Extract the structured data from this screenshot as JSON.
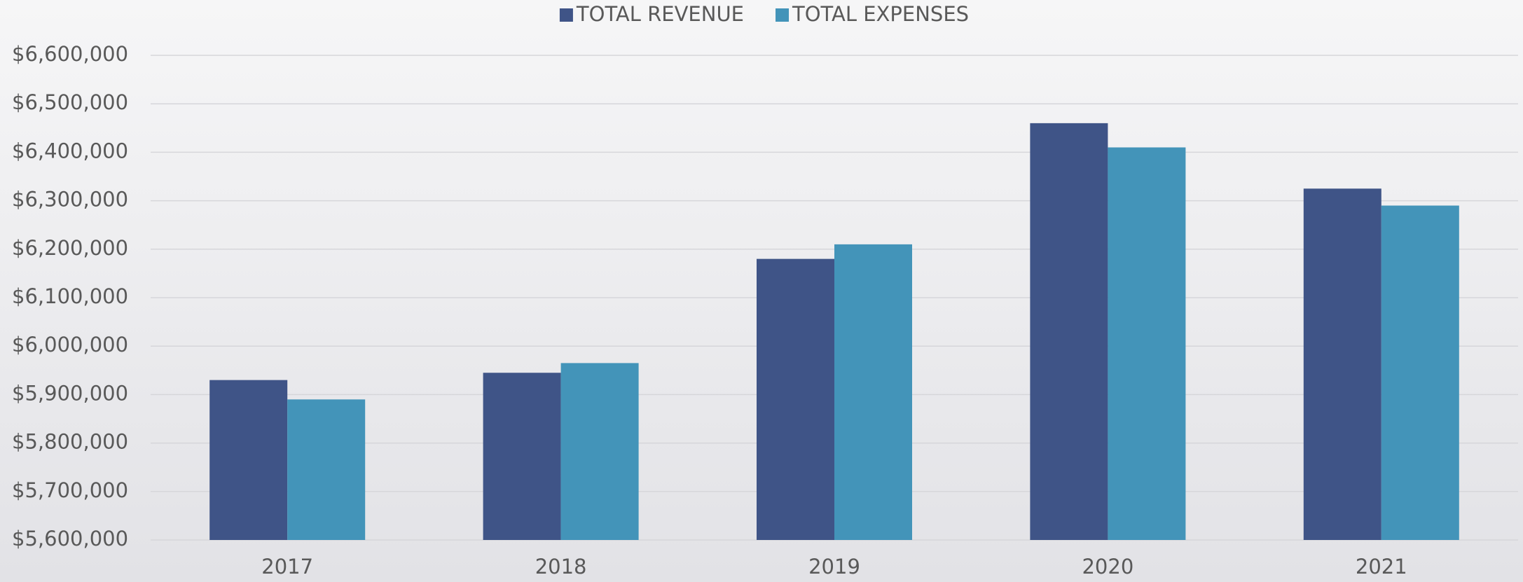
{
  "chart_data": {
    "type": "bar",
    "categories": [
      "2017",
      "2018",
      "2019",
      "2020",
      "2021"
    ],
    "series": [
      {
        "name": "TOTAL REVENUE",
        "color": "#3f5487",
        "values": [
          5930000,
          5945000,
          6180000,
          6460000,
          6325000
        ]
      },
      {
        "name": "TOTAL EXPENSES",
        "color": "#4394b9",
        "values": [
          5890000,
          5965000,
          6210000,
          6410000,
          6290000
        ]
      }
    ],
    "ylim": [
      5600000,
      6600000
    ],
    "yticks": [
      {
        "value": 5600000,
        "label": "$5,600,000"
      },
      {
        "value": 5700000,
        "label": "$5,700,000"
      },
      {
        "value": 5800000,
        "label": "$5,800,000"
      },
      {
        "value": 5900000,
        "label": "$5,900,000"
      },
      {
        "value": 6000000,
        "label": "$6,000,000"
      },
      {
        "value": 6100000,
        "label": "$6,100,000"
      },
      {
        "value": 6200000,
        "label": "$6,200,000"
      },
      {
        "value": 6300000,
        "label": "$6,300,000"
      },
      {
        "value": 6400000,
        "label": "$6,400,000"
      },
      {
        "value": 6500000,
        "label": "$6,500,000"
      },
      {
        "value": 6600000,
        "label": "$6,600,000"
      }
    ],
    "grid": true,
    "legend": "top"
  }
}
